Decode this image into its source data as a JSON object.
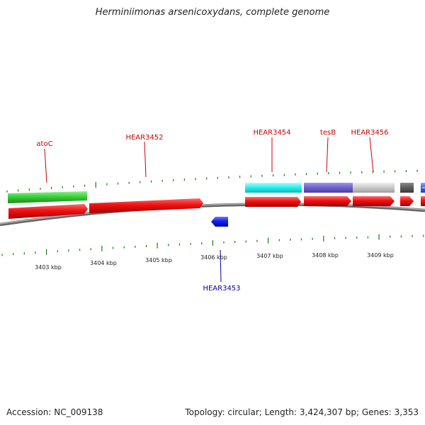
{
  "title": "Herminiimonas arsenicoxydans, complete genome",
  "footer": {
    "accession": "Accession: NC_009138",
    "stats": "Topology: circular; Length: 3,424,307 bp; Genes: 3,353"
  },
  "colors": {
    "cds_forward": "#ee1111",
    "cds_reverse": "#1122ee",
    "backbone": "#8a8a8a",
    "ticks": "#1a7a1a",
    "label_forward": "#cc0000",
    "label_reverse": "#0000aa",
    "feature_green": "#33cc33",
    "feature_cyan": "#22eeee",
    "feature_purple": "#7060cc",
    "feature_lightgray": "#c8c8c8",
    "feature_darkgray": "#5a5a5a",
    "feature_blue": "#3366dd"
  },
  "scale_labels": [
    "3403 kbp",
    "3404 kbp",
    "3405 kbp",
    "3406 kbp",
    "3407 kbp",
    "3408 kbp",
    "3409 kbp"
  ],
  "gene_labels": [
    {
      "text": "atoC",
      "strand": "forward"
    },
    {
      "text": "HEAR3452",
      "strand": "forward"
    },
    {
      "text": "HEAR3454",
      "strand": "forward"
    },
    {
      "text": "tesB",
      "strand": "forward"
    },
    {
      "text": "HEAR3456",
      "strand": "forward"
    },
    {
      "text": "HEAR3453",
      "strand": "reverse"
    }
  ]
}
